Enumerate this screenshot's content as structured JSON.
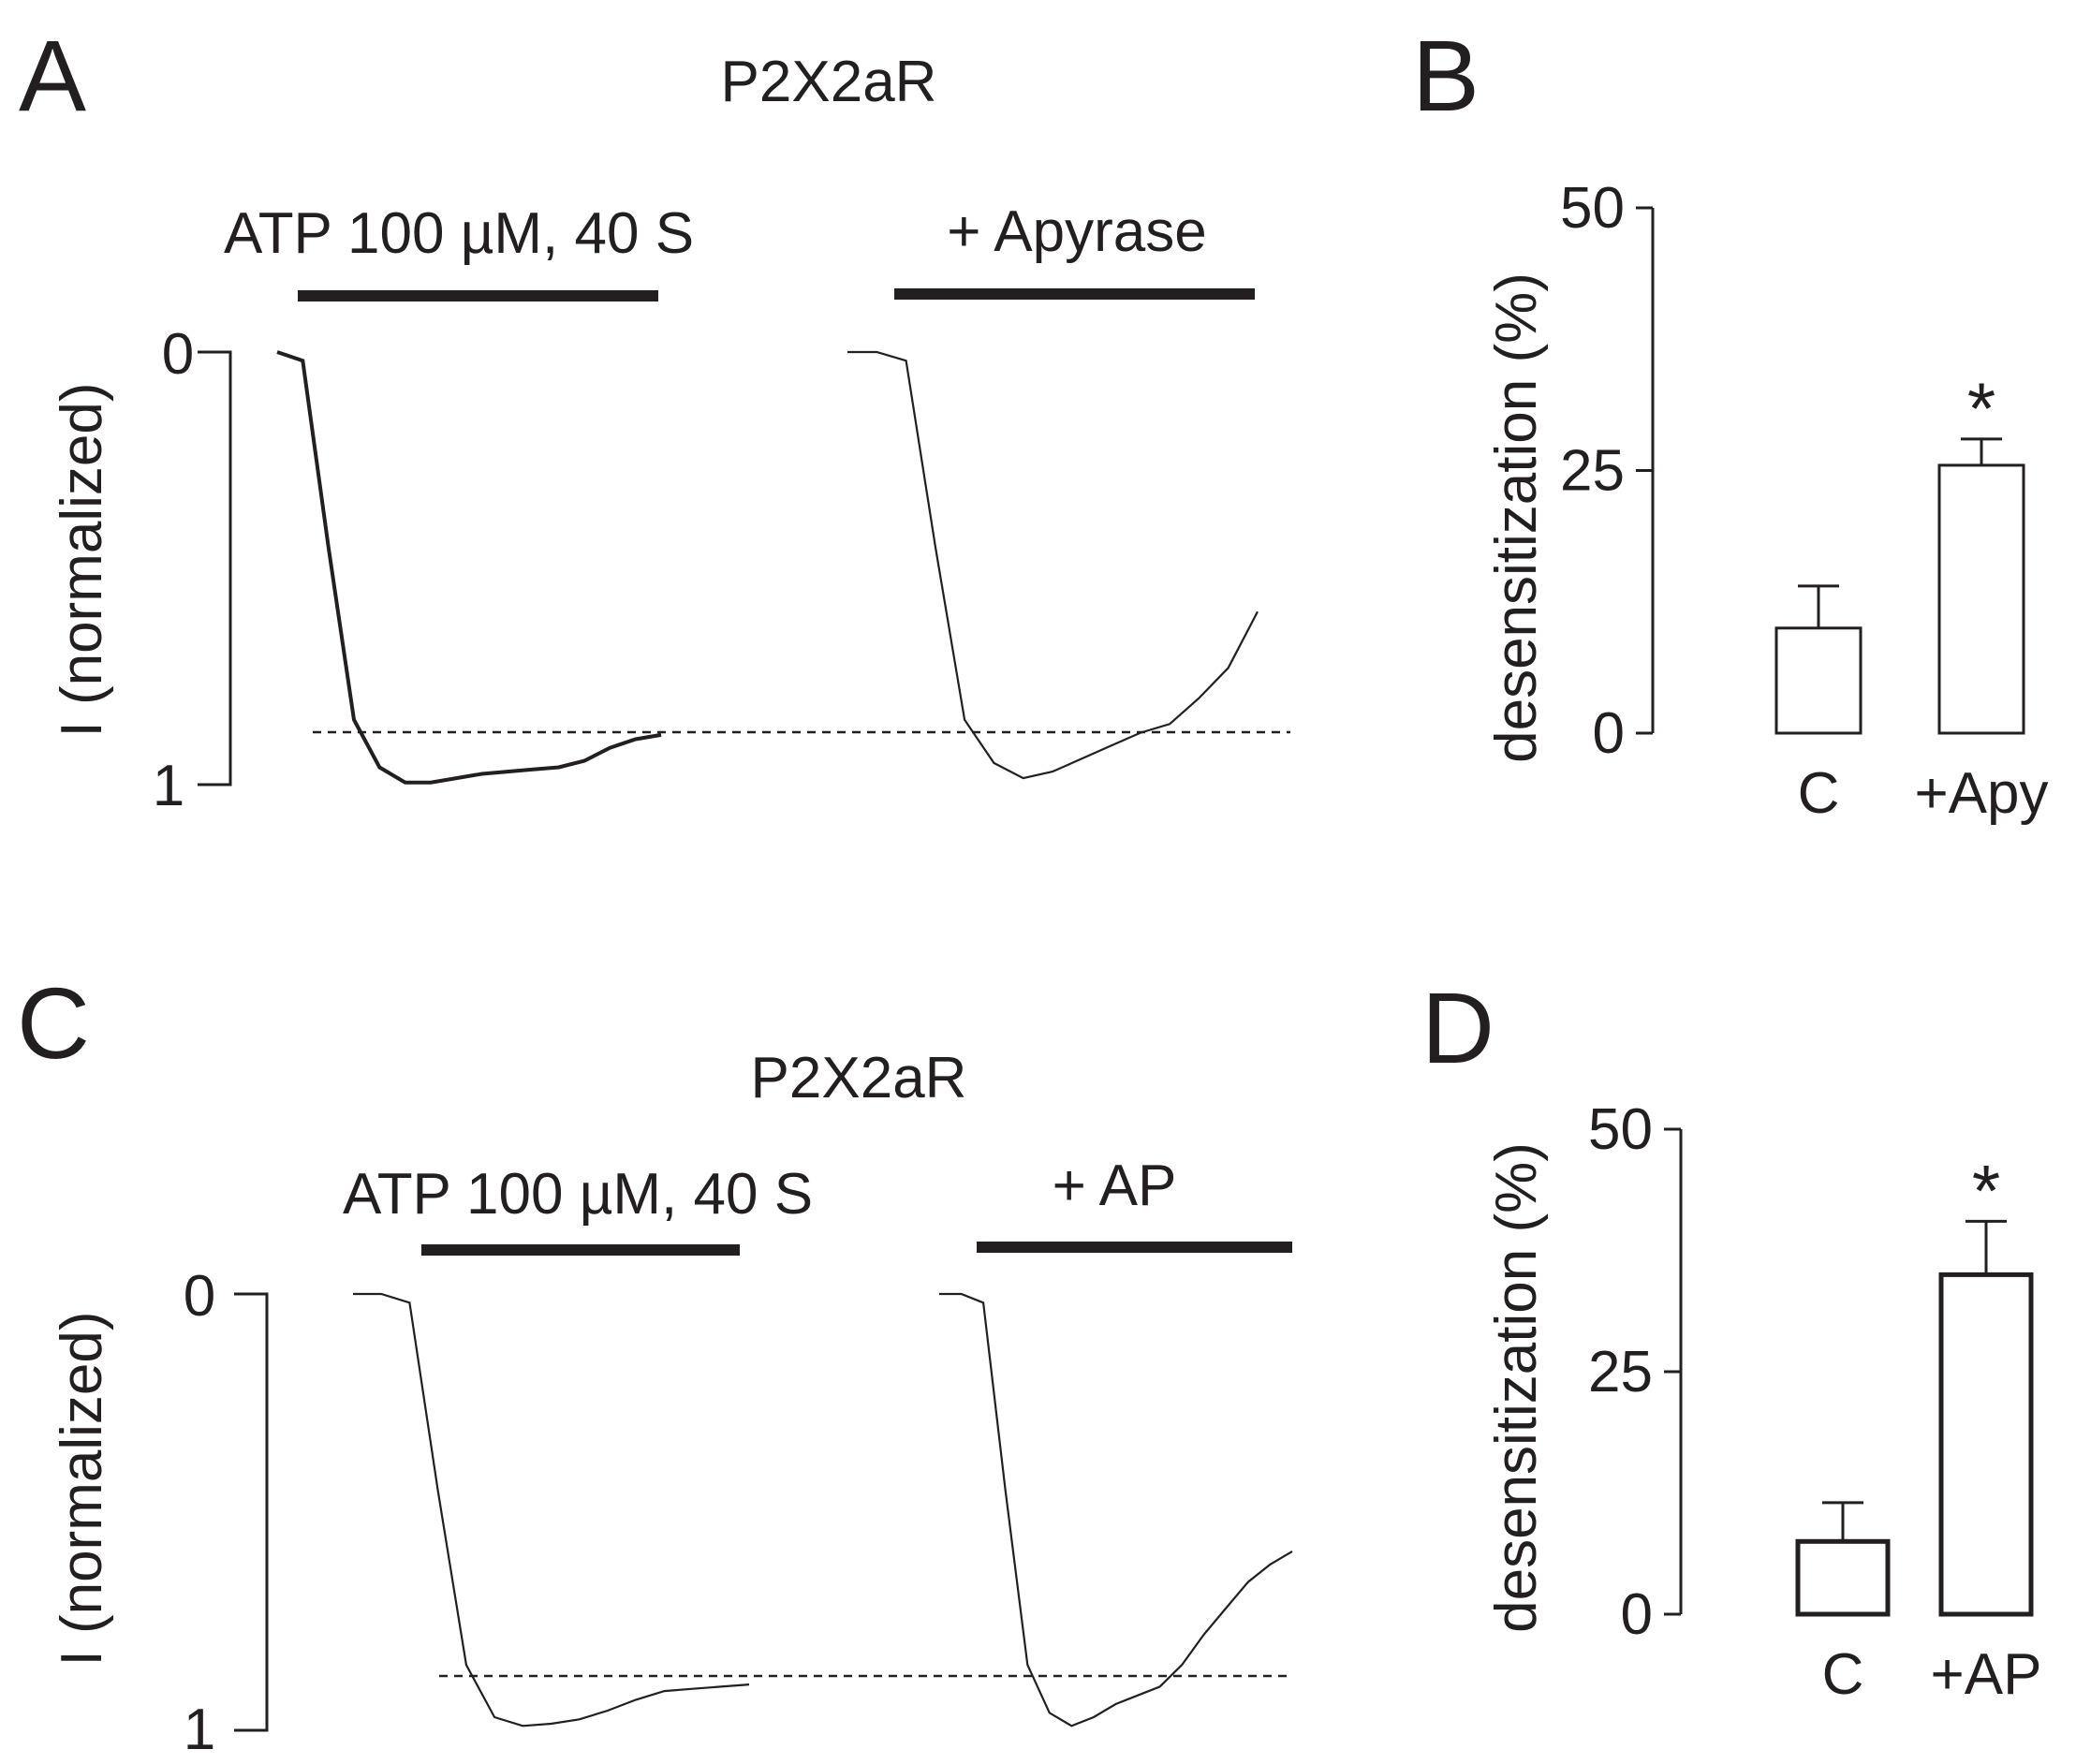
{
  "panels": {
    "A": {
      "letter": "A",
      "title": "P2X2aR",
      "bar1_label": "ATP 100 µM, 40 S",
      "bar2_label": "+ Apyrase",
      "ylabel": "I (normalized)",
      "ytick_top": "0",
      "ytick_bottom": "1"
    },
    "B": {
      "letter": "B",
      "ylabel": "desensitization (%)",
      "significance": "*"
    },
    "C": {
      "letter": "C",
      "title": "P2X2aR",
      "bar1_label": "ATP 100 µM, 40 S",
      "bar2_label": "+ AP",
      "ylabel": "I (normalized)",
      "ytick_top": "0",
      "ytick_bottom": "1"
    },
    "D": {
      "letter": "D",
      "ylabel": "desensitization (%)",
      "significance": "*"
    }
  },
  "colors": {
    "ink": "#231f20",
    "background": "#ffffff"
  },
  "chart_data": [
    {
      "panel": "A",
      "type": "line",
      "title": "P2X2aR",
      "ylabel": "I (normalized)",
      "ylim": [
        0,
        1
      ],
      "y_axis": "inverted (0 at top, 1 at bottom)",
      "reference_line": {
        "y": 0.88,
        "style": "dashed"
      },
      "series": [
        {
          "name": "ATP 100 µM, 40 S",
          "y": [
            0,
            0.02,
            0.45,
            0.85,
            0.96,
            0.995,
            0.995,
            0.985,
            0.975,
            0.97,
            0.965,
            0.96,
            0.945,
            0.915,
            0.895,
            0.885
          ]
        },
        {
          "name": "+ Apyrase",
          "y": [
            0,
            0,
            0.02,
            0.45,
            0.85,
            0.95,
            0.985,
            0.97,
            0.94,
            0.91,
            0.88,
            0.86,
            0.8,
            0.73,
            0.6
          ]
        }
      ]
    },
    {
      "panel": "B",
      "type": "bar",
      "ylabel": "desensitization (%)",
      "categories": [
        "C",
        "+Apy"
      ],
      "values": [
        10,
        25.5
      ],
      "errors": [
        4,
        2.5
      ],
      "yticks": [
        0,
        25,
        50
      ],
      "ylim": [
        0,
        50
      ],
      "annotations": [
        "*"
      ]
    },
    {
      "panel": "C",
      "type": "line",
      "title": "P2X2aR",
      "ylabel": "I (normalized)",
      "ylim": [
        0,
        1
      ],
      "y_axis": "inverted (0 at top, 1 at bottom)",
      "reference_line": {
        "y": 0.88,
        "style": "dashed"
      },
      "series": [
        {
          "name": "ATP 100 µM, 40 S",
          "y": [
            0,
            0,
            0.02,
            0.45,
            0.85,
            0.97,
            0.99,
            0.985,
            0.975,
            0.955,
            0.93,
            0.91,
            0.905,
            0.9,
            0.895
          ]
        },
        {
          "name": "+ AP",
          "y": [
            0,
            0,
            0.02,
            0.45,
            0.85,
            0.96,
            0.99,
            0.97,
            0.94,
            0.92,
            0.9,
            0.85,
            0.78,
            0.72,
            0.66,
            0.62,
            0.59
          ]
        }
      ]
    },
    {
      "panel": "D",
      "type": "bar",
      "ylabel": "desensitization (%)",
      "categories": [
        "C",
        "+AP"
      ],
      "values": [
        7.5,
        35
      ],
      "errors": [
        4,
        5.5
      ],
      "yticks": [
        0,
        25,
        50
      ],
      "ylim": [
        0,
        50
      ],
      "annotations": [
        "*"
      ]
    }
  ]
}
